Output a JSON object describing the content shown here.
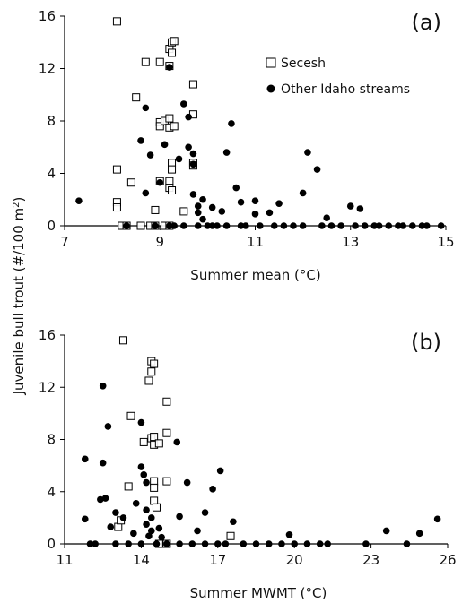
{
  "figure": {
    "ylabel": "Juvenile bull trout (#/100 m²)",
    "ylabel_main": "Juvenile bull trout (#/100 m",
    "ylabel_sup": "2",
    "ylabel_close": ")",
    "legend": {
      "secesh": "Secesh",
      "other": "Other Idaho streams"
    },
    "colors": {
      "marker": "#000000",
      "open_fill": "#ffffff",
      "axis": "#000000"
    },
    "marker_shapes": {
      "Secesh": "open-square",
      "Other Idaho streams": "filled-circle"
    }
  },
  "chart_data": [
    {
      "type": "scatter",
      "panel_label": "(a)",
      "xlabel": "Summer mean (°C)",
      "ylabel": "Juvenile bull trout (#/100 m²)",
      "xlim": [
        7,
        15
      ],
      "ylim": [
        0,
        16
      ],
      "xticks": [
        7,
        9,
        11,
        13,
        15
      ],
      "yticks": [
        0,
        4,
        8,
        12,
        16
      ],
      "legend_position": "upper-right",
      "grid": false,
      "series": [
        {
          "name": "Secesh",
          "points": [
            [
              8.1,
              15.6
            ],
            [
              8.1,
              4.3
            ],
            [
              8.1,
              1.8
            ],
            [
              8.1,
              1.4
            ],
            [
              8.2,
              0
            ],
            [
              8.3,
              0
            ],
            [
              8.4,
              3.3
            ],
            [
              8.5,
              9.8
            ],
            [
              8.6,
              0
            ],
            [
              8.7,
              12.5
            ],
            [
              8.8,
              0
            ],
            [
              8.9,
              0
            ],
            [
              8.9,
              1.2
            ],
            [
              9.0,
              12.5
            ],
            [
              9.0,
              7.9
            ],
            [
              9.0,
              7.6
            ],
            [
              9.0,
              3.4
            ],
            [
              9.1,
              8.0
            ],
            [
              9.1,
              0
            ],
            [
              9.2,
              13.5
            ],
            [
              9.2,
              12.2
            ],
            [
              9.2,
              8.2
            ],
            [
              9.2,
              7.5
            ],
            [
              9.2,
              3.4
            ],
            [
              9.2,
              2.9
            ],
            [
              9.2,
              0
            ],
            [
              9.25,
              14.0
            ],
            [
              9.25,
              13.2
            ],
            [
              9.25,
              4.8
            ],
            [
              9.25,
              4.3
            ],
            [
              9.25,
              2.7
            ],
            [
              9.3,
              14.1
            ],
            [
              9.3,
              7.6
            ],
            [
              9.5,
              1.1
            ],
            [
              9.7,
              10.8
            ],
            [
              9.7,
              8.5
            ],
            [
              9.7,
              4.8
            ],
            [
              9.7,
              4.6
            ]
          ]
        },
        {
          "name": "Other Idaho streams",
          "points": [
            [
              7.3,
              1.9
            ],
            [
              8.3,
              0
            ],
            [
              8.6,
              6.5
            ],
            [
              8.7,
              9.0
            ],
            [
              8.7,
              2.5
            ],
            [
              8.8,
              5.4
            ],
            [
              8.9,
              0
            ],
            [
              9.0,
              3.3
            ],
            [
              9.1,
              6.2
            ],
            [
              9.2,
              12.1
            ],
            [
              9.3,
              0
            ],
            [
              9.4,
              5.1
            ],
            [
              9.5,
              9.3
            ],
            [
              9.6,
              8.3
            ],
            [
              9.6,
              6.0
            ],
            [
              9.7,
              5.5
            ],
            [
              9.7,
              4.7
            ],
            [
              9.7,
              2.4
            ],
            [
              9.8,
              1.5
            ],
            [
              9.8,
              1.0
            ],
            [
              9.9,
              2.0
            ],
            [
              9.9,
              0.5
            ],
            [
              10.0,
              0
            ],
            [
              10.1,
              1.4
            ],
            [
              10.2,
              0
            ],
            [
              10.3,
              1.1
            ],
            [
              10.4,
              5.6
            ],
            [
              10.5,
              7.8
            ],
            [
              10.6,
              2.9
            ],
            [
              10.7,
              1.8
            ],
            [
              10.8,
              0
            ],
            [
              11.0,
              0.9
            ],
            [
              11.0,
              1.9
            ],
            [
              11.3,
              1.0
            ],
            [
              11.4,
              0
            ],
            [
              11.5,
              1.7
            ],
            [
              11.8,
              0
            ],
            [
              12.0,
              2.5
            ],
            [
              12.1,
              5.6
            ],
            [
              12.3,
              4.3
            ],
            [
              12.4,
              0
            ],
            [
              12.5,
              0.6
            ],
            [
              12.8,
              0
            ],
            [
              13.0,
              1.5
            ],
            [
              13.2,
              1.3
            ],
            [
              13.5,
              0
            ],
            [
              13.8,
              0
            ],
            [
              14.0,
              0
            ],
            [
              14.3,
              0
            ],
            [
              14.6,
              0
            ],
            [
              14.9,
              0
            ],
            [
              9.2,
              0
            ],
            [
              9.5,
              0
            ],
            [
              9.8,
              0
            ],
            [
              10.1,
              0
            ],
            [
              10.4,
              0
            ],
            [
              10.7,
              0
            ],
            [
              11.1,
              0
            ],
            [
              11.6,
              0
            ],
            [
              12.0,
              0
            ],
            [
              12.6,
              0
            ],
            [
              13.1,
              0
            ],
            [
              13.3,
              0
            ],
            [
              13.6,
              0
            ],
            [
              14.1,
              0
            ],
            [
              14.5,
              0
            ]
          ]
        }
      ]
    },
    {
      "type": "scatter",
      "panel_label": "(b)",
      "xlabel": "Summer MWMT (°C)",
      "ylabel": "Juvenile bull trout (#/100 m²)",
      "xlim": [
        11,
        26
      ],
      "ylim": [
        0,
        16
      ],
      "xticks": [
        11,
        14,
        17,
        20,
        23,
        26
      ],
      "yticks": [
        0,
        4,
        8,
        12,
        16
      ],
      "legend_position": "none",
      "grid": false,
      "series": [
        {
          "name": "Secesh",
          "points": [
            [
              13.1,
              1.3
            ],
            [
              13.2,
              1.8
            ],
            [
              13.3,
              15.6
            ],
            [
              13.5,
              4.4
            ],
            [
              13.6,
              9.8
            ],
            [
              14.1,
              7.8
            ],
            [
              14.3,
              12.5
            ],
            [
              14.4,
              14.0
            ],
            [
              14.4,
              13.2
            ],
            [
              14.4,
              8.1
            ],
            [
              14.5,
              13.8
            ],
            [
              14.5,
              8.2
            ],
            [
              14.5,
              7.6
            ],
            [
              14.5,
              4.8
            ],
            [
              14.5,
              4.3
            ],
            [
              14.5,
              3.3
            ],
            [
              14.6,
              2.8
            ],
            [
              14.7,
              0
            ],
            [
              14.7,
              7.7
            ],
            [
              15.0,
              10.9
            ],
            [
              15.0,
              8.5
            ],
            [
              15.0,
              4.8
            ],
            [
              15.0,
              0
            ],
            [
              17.5,
              0.6
            ]
          ]
        },
        {
          "name": "Other Idaho streams",
          "points": [
            [
              11.8,
              6.5
            ],
            [
              11.8,
              1.9
            ],
            [
              12.2,
              0
            ],
            [
              12.4,
              3.4
            ],
            [
              12.5,
              12.1
            ],
            [
              12.5,
              6.2
            ],
            [
              12.6,
              3.5
            ],
            [
              12.7,
              9.0
            ],
            [
              12.8,
              1.3
            ],
            [
              13.0,
              2.4
            ],
            [
              13.3,
              2.0
            ],
            [
              13.5,
              0
            ],
            [
              13.7,
              0.8
            ],
            [
              13.8,
              3.1
            ],
            [
              14.0,
              9.3
            ],
            [
              14.0,
              5.9
            ],
            [
              14.1,
              5.3
            ],
            [
              14.2,
              4.7
            ],
            [
              14.2,
              2.6
            ],
            [
              14.2,
              1.5
            ],
            [
              14.3,
              0.6
            ],
            [
              14.4,
              2.0
            ],
            [
              14.4,
              1.0
            ],
            [
              14.6,
              0
            ],
            [
              14.7,
              1.2
            ],
            [
              14.8,
              0.5
            ],
            [
              15.0,
              0
            ],
            [
              15.4,
              7.8
            ],
            [
              15.5,
              2.1
            ],
            [
              15.8,
              4.7
            ],
            [
              16.0,
              0
            ],
            [
              16.2,
              1.0
            ],
            [
              16.5,
              2.4
            ],
            [
              16.8,
              4.2
            ],
            [
              17.1,
              5.6
            ],
            [
              17.3,
              0
            ],
            [
              17.6,
              1.7
            ],
            [
              18.0,
              0
            ],
            [
              18.5,
              0
            ],
            [
              19.0,
              0
            ],
            [
              19.8,
              0.7
            ],
            [
              20.5,
              0
            ],
            [
              21.3,
              0
            ],
            [
              22.8,
              0
            ],
            [
              23.6,
              1.0
            ],
            [
              24.4,
              0
            ],
            [
              24.9,
              0.8
            ],
            [
              25.6,
              1.9
            ],
            [
              12.0,
              0
            ],
            [
              13.0,
              0
            ],
            [
              14.0,
              0
            ],
            [
              15.5,
              0
            ],
            [
              16.5,
              0
            ],
            [
              17.0,
              0
            ],
            [
              19.5,
              0
            ],
            [
              20.0,
              0
            ],
            [
              21.0,
              0
            ]
          ]
        }
      ]
    }
  ]
}
